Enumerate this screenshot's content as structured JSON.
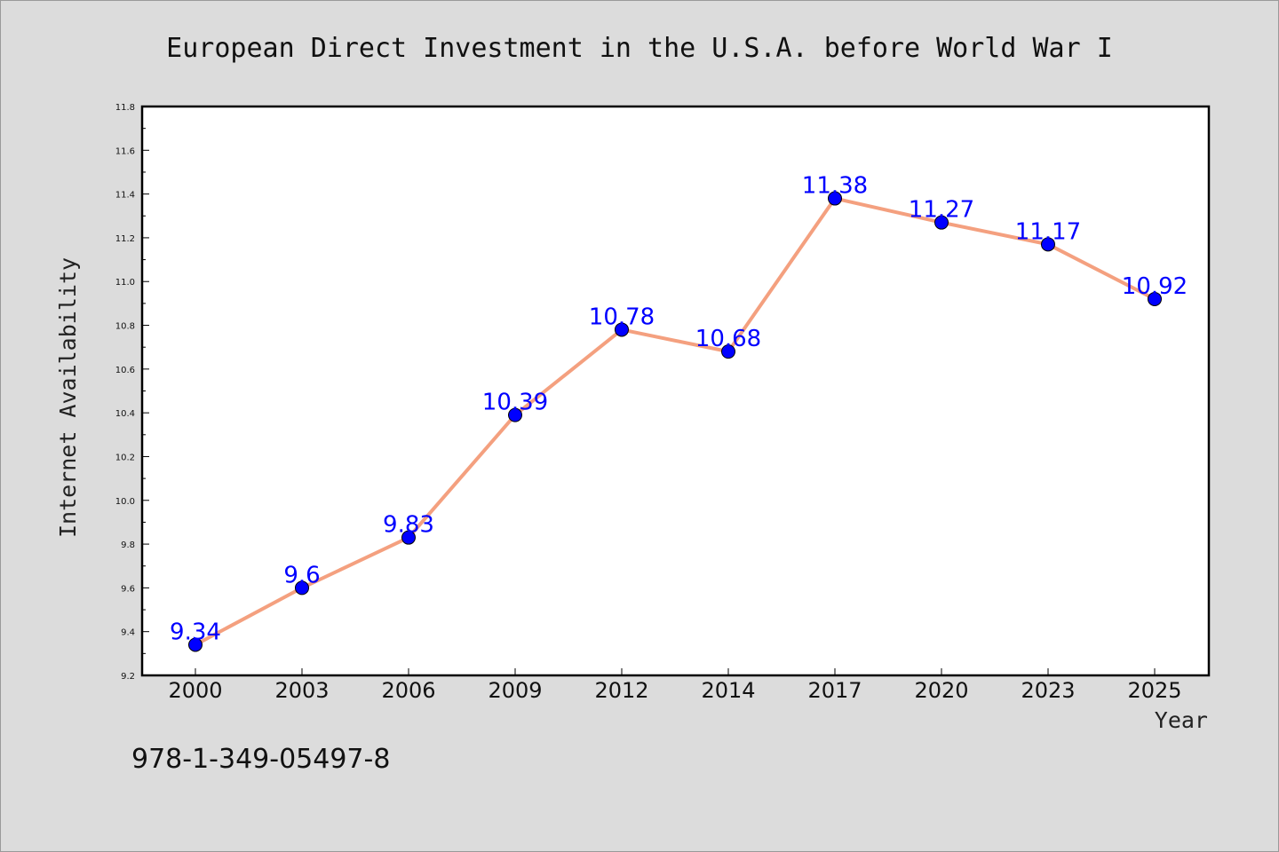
{
  "chart_data": {
    "type": "line",
    "title": "European Direct Investment in the U.S.A. before World War I",
    "xlabel": "Year",
    "ylabel": "Internet Availability",
    "categories": [
      "2000",
      "2003",
      "2006",
      "2009",
      "2012",
      "2014",
      "2017",
      "2020",
      "2023",
      "2025"
    ],
    "series": [
      {
        "values": [
          9.34,
          9.6,
          9.83,
          10.39,
          10.78,
          10.68,
          11.38,
          11.27,
          11.17,
          10.92
        ],
        "data_labels": [
          "9.34",
          "9.6",
          "9.83",
          "10.39",
          "10.78",
          "10.68",
          "11.38",
          "11.27",
          "11.17",
          "10.92"
        ],
        "line_color": "#f4a07f",
        "marker_color": "#0000ff"
      }
    ],
    "ylim": [
      9.2,
      11.8
    ],
    "yticks": [
      "9.2",
      "9.4",
      "9.6",
      "9.8",
      "10.0",
      "10.2",
      "10.4",
      "10.6",
      "10.8",
      "11.0",
      "11.2",
      "11.4",
      "11.6",
      "11.8"
    ],
    "grid": false,
    "legend": "none"
  },
  "footnote": "978-1-349-05497-8",
  "colors": {
    "background": "#dcdcdc",
    "plot_background": "#ffffff",
    "axis": "#000000"
  }
}
